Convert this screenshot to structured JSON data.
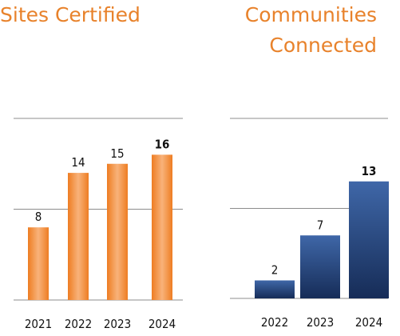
{
  "chart_data": [
    {
      "type": "bar",
      "title": "Sites Certified",
      "categories": [
        "2021",
        "2022",
        "2023",
        "2024"
      ],
      "values": [
        8,
        14,
        15,
        16
      ],
      "highlight_last": true,
      "ylim": [
        0,
        20
      ],
      "gridlines": [
        0,
        10,
        20
      ],
      "color": "#ee7d22",
      "color_light": "#f8b27a"
    },
    {
      "type": "bar",
      "title_lines": [
        "Communities",
        "Connected"
      ],
      "categories": [
        "2022",
        "2023",
        "2024"
      ],
      "values": [
        2,
        7,
        13
      ],
      "highlight_last": true,
      "ylim": [
        0,
        20
      ],
      "gridlines": [
        0,
        10,
        20
      ],
      "color": "#1f3d72",
      "color_light": "#3f67a8"
    }
  ]
}
